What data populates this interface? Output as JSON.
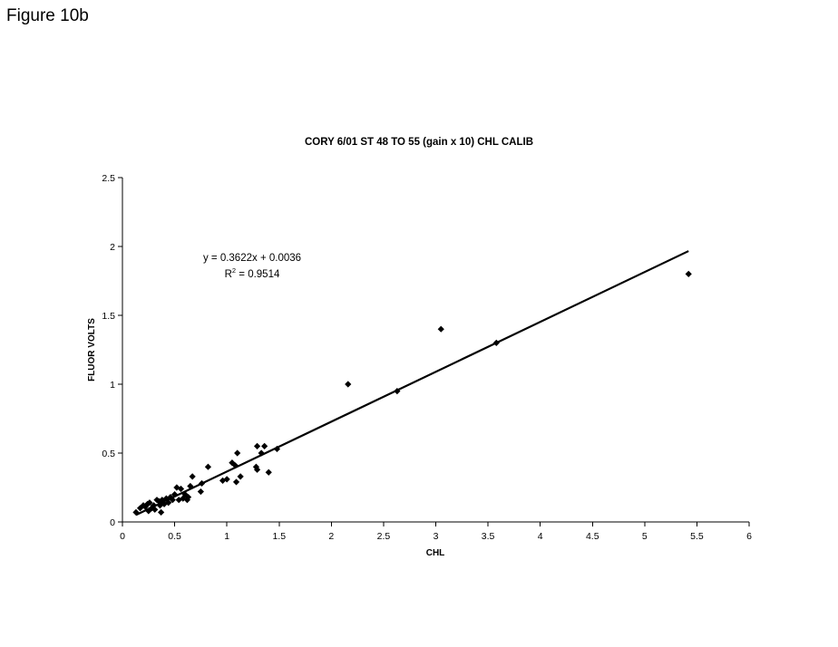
{
  "figure_label": "Figure 10b",
  "chart_data": {
    "type": "scatter",
    "title": "CORY 6/01 ST 48 TO 55 (gain x 10) CHL CALIB",
    "xlabel": "CHL",
    "ylabel": "FLUOR VOLTS",
    "xlim": [
      0,
      6
    ],
    "ylim": [
      0,
      2.5
    ],
    "x_ticks": [
      "0",
      "0.5",
      "1",
      "1.5",
      "2",
      "2.5",
      "3",
      "3.5",
      "4",
      "4.5",
      "5",
      "5.5",
      "6"
    ],
    "y_ticks": [
      "0",
      "0.5",
      "1",
      "1.5",
      "2",
      "2.5"
    ],
    "grid": false,
    "legend": "none",
    "marker": "diamond",
    "marker_color": "#000000",
    "series": [
      {
        "x": [
          0.13,
          0.17,
          0.2,
          0.22,
          0.24,
          0.25,
          0.26,
          0.28,
          0.3,
          0.31,
          0.33,
          0.35,
          0.36,
          0.37,
          0.38,
          0.4,
          0.42,
          0.44,
          0.46,
          0.48,
          0.5,
          0.52,
          0.54,
          0.56,
          0.58,
          0.6,
          0.62,
          0.63,
          0.65,
          0.67,
          0.75,
          0.76,
          0.82,
          0.96,
          1.0,
          1.05,
          1.08,
          1.09,
          1.1,
          1.13,
          1.28,
          1.29,
          1.29,
          1.33,
          1.36,
          1.4,
          1.48,
          2.16,
          2.63,
          3.05,
          3.58,
          5.42
        ],
        "y": [
          0.07,
          0.1,
          0.12,
          0.11,
          0.13,
          0.08,
          0.14,
          0.1,
          0.12,
          0.09,
          0.16,
          0.15,
          0.12,
          0.07,
          0.16,
          0.13,
          0.17,
          0.14,
          0.18,
          0.16,
          0.2,
          0.25,
          0.16,
          0.24,
          0.17,
          0.2,
          0.16,
          0.18,
          0.26,
          0.33,
          0.22,
          0.28,
          0.4,
          0.3,
          0.31,
          0.43,
          0.41,
          0.29,
          0.5,
          0.33,
          0.4,
          0.38,
          0.55,
          0.5,
          0.55,
          0.36,
          0.53,
          1.0,
          0.95,
          1.4,
          1.3,
          1.8
        ]
      }
    ],
    "trendline": {
      "slope": 0.3622,
      "intercept": 0.0036,
      "x_start": 0.13,
      "x_end": 5.42
    },
    "annotation": {
      "equation": "y = 0.3622x + 0.0036",
      "r2_prefix": "R",
      "r2_sup": "2",
      "r2_value": " = 0.9514"
    }
  }
}
